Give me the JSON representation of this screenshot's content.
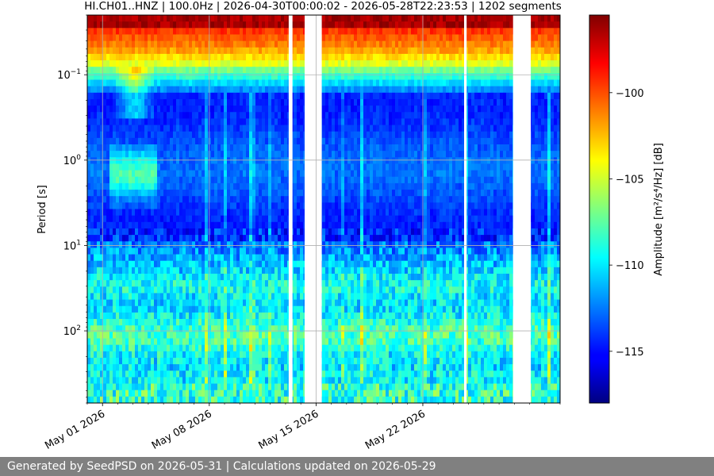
{
  "chart_data": {
    "type": "heatmap",
    "title": "HI.CH01..HNZ | 100.0Hz | 2026-04-30T00:00:02 - 2026-05-28T22:23:53 | 1202 segments",
    "ylabel": "Period [s]",
    "colorbar_label": "Amplitude [m²/s⁴/Hz] [dB]",
    "y_scale": "log",
    "y_inverted": true,
    "y_range_s": [
      0.02,
      700
    ],
    "y_ticks": [
      {
        "value": 0.1,
        "base": "10",
        "exp": "−1"
      },
      {
        "value": 1,
        "base": "10",
        "exp": "0"
      },
      {
        "value": 10,
        "base": "10",
        "exp": "1"
      },
      {
        "value": 100,
        "base": "10",
        "exp": "2"
      }
    ],
    "x_start": "2026-04-30",
    "x_end": "2026-05-31",
    "x_ticks": [
      {
        "date": "2026-05-01",
        "label": "May 01 2026"
      },
      {
        "date": "2026-05-08",
        "label": "May 08 2026"
      },
      {
        "date": "2026-05-15",
        "label": "May 15 2026"
      },
      {
        "date": "2026-05-22",
        "label": "May 22 2026"
      }
    ],
    "data_gaps": [
      {
        "start": "2026-05-13T05:00",
        "end": "2026-05-13T11:00"
      },
      {
        "start": "2026-05-14T06:00",
        "end": "2026-05-15T09:00"
      },
      {
        "start": "2026-05-24T17:00",
        "end": "2026-05-24T21:00"
      },
      {
        "start": "2026-05-27T22:00",
        "end": "2026-05-29T02:00"
      }
    ],
    "colormap": "jet",
    "clim_db": [
      -118,
      -95.5
    ],
    "colorbar_ticks": [
      -100,
      -105,
      -110,
      -115
    ],
    "grid": true
  },
  "footer": "Generated by SeedPSD on 2026-05-31 | Calculations updated on 2026-05-29"
}
